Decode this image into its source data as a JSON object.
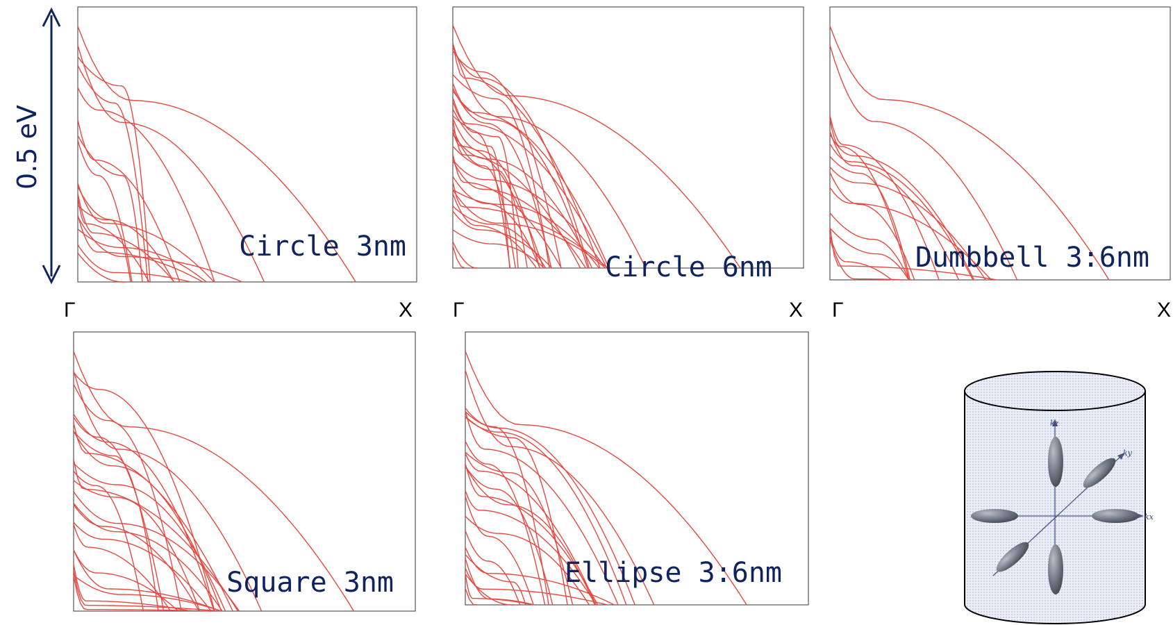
{
  "energy_scale": {
    "label": "0.5 eV"
  },
  "panels": [
    {
      "id": "circle-3nm",
      "label": "Circle 3nm",
      "k_start": "Γ",
      "k_end": "X"
    },
    {
      "id": "circle-6nm",
      "label": "Circle 6nm",
      "k_start": "Γ",
      "k_end": "X"
    },
    {
      "id": "dumbbell-3-6nm",
      "label": "Dumbbell 3:6nm",
      "k_start": "Γ",
      "k_end": "X"
    },
    {
      "id": "square-3nm",
      "label": "Square 3nm"
    },
    {
      "id": "ellipse-3-6nm",
      "label": "Ellipse 3:6nm"
    }
  ],
  "schematic": {
    "axis_labels": {
      "kx": "kx",
      "ky": "ky",
      "kz": "kz"
    }
  },
  "colors": {
    "bands": "#e8483f",
    "labels": "#0f2360",
    "cylinder_fill": "#dfe3f3",
    "ellipsoid": "#707684"
  }
}
